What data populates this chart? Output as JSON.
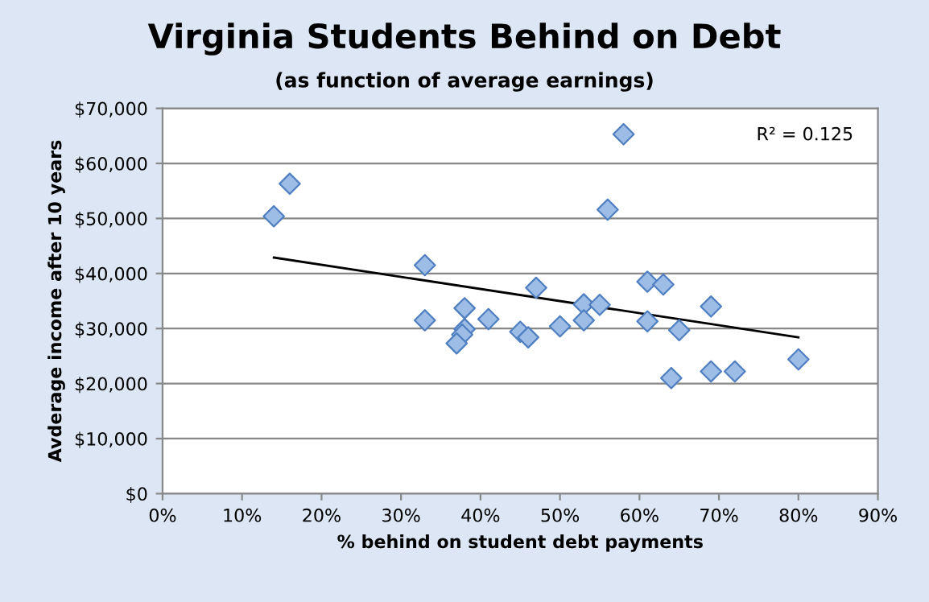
{
  "chart_data": {
    "type": "scatter",
    "title": "Virginia Students Behind on Debt",
    "subtitle": "(as function of average earnings)",
    "xlabel": "% behind on student debt payments",
    "ylabel": "Avderage income after 10 years",
    "annotations": [
      "R² = 0.125"
    ],
    "grid": "y",
    "legend": false,
    "xlim": [
      0,
      90
    ],
    "ylim": [
      0,
      70000
    ],
    "xticks": [
      {
        "value": 0,
        "label": "0%"
      },
      {
        "value": 10,
        "label": "10%"
      },
      {
        "value": 20,
        "label": "20%"
      },
      {
        "value": 30,
        "label": "30%"
      },
      {
        "value": 40,
        "label": "40%"
      },
      {
        "value": 50,
        "label": "50%"
      },
      {
        "value": 60,
        "label": "60%"
      },
      {
        "value": 70,
        "label": "70%"
      },
      {
        "value": 80,
        "label": "80%"
      },
      {
        "value": 90,
        "label": "90%"
      }
    ],
    "yticks": [
      {
        "value": 0,
        "label": "$0"
      },
      {
        "value": 10000,
        "label": "$10,000"
      },
      {
        "value": 20000,
        "label": "$20,000"
      },
      {
        "value": 30000,
        "label": "$30,000"
      },
      {
        "value": 40000,
        "label": "$40,000"
      },
      {
        "value": 50000,
        "label": "$50,000"
      },
      {
        "value": 60000,
        "label": "$60,000"
      },
      {
        "value": 70000,
        "label": "$70,000"
      }
    ],
    "series": [
      {
        "marker": "diamond",
        "color": "#9dbde6",
        "x": [
          14,
          16,
          33,
          33,
          38,
          38,
          37.7,
          37,
          41,
          45,
          46,
          47,
          50,
          53,
          53,
          55,
          56,
          58,
          61,
          63,
          61,
          65,
          64,
          69,
          69,
          72,
          80
        ],
        "values": [
          50400,
          56300,
          41500,
          31500,
          33700,
          29900,
          28900,
          27300,
          31700,
          29400,
          28400,
          37400,
          30400,
          34400,
          31500,
          34300,
          51600,
          65300,
          38500,
          38000,
          31300,
          29700,
          21000,
          34000,
          22200,
          22200,
          24400
        ]
      },
      {
        "type": "line",
        "marker": "none",
        "color": "#000000",
        "x": [
          14,
          80
        ],
        "values": [
          42900,
          28400
        ]
      }
    ]
  }
}
